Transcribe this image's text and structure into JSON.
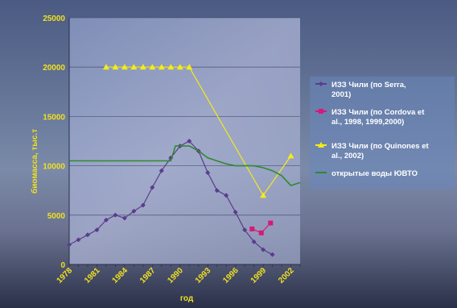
{
  "chart_data": {
    "type": "line",
    "xlabel": "год",
    "ylabel": "биомасса, тыс.т",
    "xlim": [
      1978,
      2003
    ],
    "ylim": [
      0,
      25000
    ],
    "y_ticks": [
      0,
      5000,
      10000,
      15000,
      20000,
      25000
    ],
    "x_ticks": [
      1978,
      1981,
      1984,
      1987,
      1990,
      1993,
      1996,
      1999,
      2002
    ],
    "grid": "horizontal",
    "legend_position": "right",
    "series": [
      {
        "name": "ИЗЗ Чили (по Serra, 2001)",
        "color": "#5a3c8c",
        "marker": "diamond",
        "x": [
          1978,
          1979,
          1980,
          1981,
          1982,
          1983,
          1984,
          1985,
          1986,
          1987,
          1988,
          1989,
          1990,
          1991,
          1992,
          1993,
          1994,
          1995,
          1996,
          1997,
          1998,
          1999,
          2000
        ],
        "y": [
          2000,
          2500,
          3000,
          3500,
          4500,
          5000,
          4700,
          5400,
          6000,
          7800,
          9500,
          10800,
          12000,
          12500,
          11500,
          9300,
          7500,
          7000,
          5300,
          3500,
          2300,
          1500,
          1000
        ]
      },
      {
        "name": "ИЗЗ Чили (по Cordova et al., 1998, 1999,2000)",
        "color": "#d81878",
        "marker": "square",
        "x": [
          1997.8,
          1998.8,
          1999.8
        ],
        "y": [
          3600,
          3200,
          4200
        ]
      },
      {
        "name": "ИЗЗ Чили (по Quinones et al., 2002)",
        "color": "#f4ec18",
        "marker": "triangle",
        "x": [
          1982,
          1983,
          1984,
          1985,
          1986,
          1987,
          1988,
          1989,
          1990,
          1991,
          1999,
          2002
        ],
        "y": [
          20000,
          20000,
          20000,
          20000,
          20000,
          20000,
          20000,
          20000,
          20000,
          20000,
          7000,
          11000
        ]
      },
      {
        "name": "открытые воды ЮВТО",
        "color": "#2e8a2e",
        "marker": "none",
        "x": [
          1978,
          1989,
          1989.5,
          1990,
          1991,
          1992,
          1993,
          1994,
          1995,
          1996,
          1997,
          1998,
          1999,
          2000,
          2001,
          2002,
          2003
        ],
        "y": [
          10500,
          10500,
          12000,
          12000,
          12000,
          11500,
          10800,
          10500,
          10200,
          10000,
          10000,
          10000,
          9800,
          9500,
          9000,
          8000,
          8300
        ]
      }
    ]
  }
}
